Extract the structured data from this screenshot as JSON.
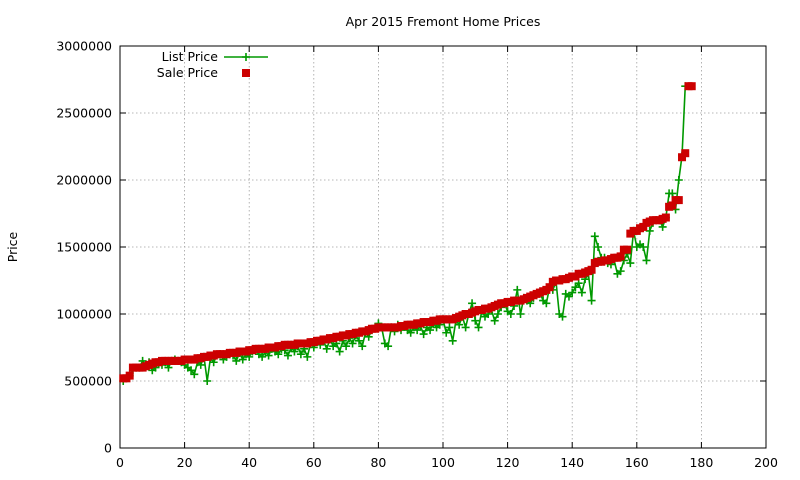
{
  "chart_data": {
    "type": "line",
    "title": "Apr 2015 Fremont Home Prices",
    "xlabel": "",
    "ylabel": "Price",
    "xlim": [
      0,
      200
    ],
    "ylim": [
      0,
      3000000
    ],
    "xticks": [
      "0",
      "20",
      "40",
      "60",
      "80",
      "100",
      "120",
      "140",
      "160",
      "180",
      "200"
    ],
    "yticks": [
      "0",
      "500000",
      "1000000",
      "1500000",
      "2000000",
      "2500000",
      "3000000"
    ],
    "grid": true,
    "legend_position": "top-left",
    "series": [
      {
        "name": "List Price",
        "style": "line+cross",
        "color": "#009900",
        "values": [
          500000,
          520000,
          540000,
          580000,
          600000,
          600000,
          650000,
          620000,
          640000,
          580000,
          600000,
          630000,
          620000,
          640000,
          600000,
          650000,
          660000,
          650000,
          640000,
          620000,
          600000,
          580000,
          550000,
          640000,
          620000,
          680000,
          500000,
          670000,
          640000,
          690000,
          700000,
          660000,
          680000,
          700000,
          690000,
          650000,
          710000,
          660000,
          700000,
          680000,
          720000,
          730000,
          700000,
          680000,
          720000,
          690000,
          740000,
          720000,
          700000,
          740000,
          730000,
          690000,
          750000,
          720000,
          760000,
          700000,
          740000,
          680000,
          780000,
          750000,
          790000,
          770000,
          800000,
          740000,
          810000,
          760000,
          780000,
          720000,
          800000,
          760000,
          820000,
          780000,
          840000,
          800000,
          760000,
          860000,
          830000,
          880000,
          900000,
          930000,
          900000,
          780000,
          760000,
          900000,
          870000,
          920000,
          880000,
          910000,
          880000,
          860000,
          900000,
          880000,
          910000,
          850000,
          900000,
          880000,
          930000,
          900000,
          920000,
          960000,
          860000,
          900000,
          800000,
          950000,
          920000,
          980000,
          900000,
          1000000,
          1080000,
          950000,
          900000,
          1020000,
          980000,
          1000000,
          1030000,
          950000,
          1000000,
          1050000,
          1080000,
          1020000,
          1000000,
          1060000,
          1180000,
          1000000,
          1120000,
          1100000,
          1080000,
          1120000,
          1140000,
          1160000,
          1100000,
          1080000,
          1200000,
          1180000,
          1240000,
          1000000,
          980000,
          1150000,
          1130000,
          1160000,
          1200000,
          1230000,
          1160000,
          1260000,
          1300000,
          1100000,
          1580000,
          1500000,
          1420000,
          1420000,
          1380000,
          1370000,
          1400000,
          1300000,
          1320000,
          1400000,
          1450000,
          1380000,
          1620000,
          1500000,
          1520000,
          1500000,
          1400000,
          1620000,
          1680000,
          1700000,
          1700000,
          1650000,
          1720000,
          1900000,
          1900000,
          1780000,
          2000000,
          2180000,
          2700000
        ]
      },
      {
        "name": "Sale Price",
        "style": "square-markers",
        "color": "#cc0000",
        "values": [
          520000,
          520000,
          540000,
          600000,
          600000,
          600000,
          600000,
          610000,
          620000,
          630000,
          640000,
          640000,
          650000,
          650000,
          650000,
          650000,
          650000,
          650000,
          650000,
          660000,
          660000,
          660000,
          660000,
          670000,
          670000,
          680000,
          680000,
          690000,
          690000,
          700000,
          700000,
          700000,
          700000,
          710000,
          710000,
          710000,
          720000,
          720000,
          720000,
          730000,
          730000,
          740000,
          740000,
          740000,
          740000,
          750000,
          750000,
          750000,
          760000,
          760000,
          770000,
          770000,
          770000,
          770000,
          780000,
          780000,
          780000,
          780000,
          790000,
          790000,
          800000,
          800000,
          810000,
          810000,
          820000,
          820000,
          830000,
          830000,
          840000,
          840000,
          850000,
          850000,
          860000,
          860000,
          870000,
          870000,
          880000,
          890000,
          890000,
          900000,
          900000,
          900000,
          900000,
          900000,
          900000,
          900000,
          910000,
          910000,
          920000,
          920000,
          920000,
          930000,
          930000,
          940000,
          940000,
          940000,
          950000,
          950000,
          960000,
          960000,
          960000,
          960000,
          960000,
          970000,
          980000,
          990000,
          1000000,
          1000000,
          1010000,
          1020000,
          1030000,
          1030000,
          1040000,
          1040000,
          1050000,
          1060000,
          1070000,
          1080000,
          1080000,
          1090000,
          1090000,
          1100000,
          1100000,
          1100000,
          1110000,
          1120000,
          1130000,
          1140000,
          1150000,
          1160000,
          1170000,
          1180000,
          1200000,
          1240000,
          1250000,
          1250000,
          1260000,
          1260000,
          1270000,
          1280000,
          1280000,
          1300000,
          1300000,
          1310000,
          1320000,
          1330000,
          1380000,
          1390000,
          1390000,
          1400000,
          1400000,
          1410000,
          1420000,
          1420000,
          1430000,
          1480000,
          1480000,
          1600000,
          1620000,
          1620000,
          1640000,
          1650000,
          1680000,
          1690000,
          1700000,
          1700000,
          1700000,
          1710000,
          1720000,
          1800000,
          1810000,
          1850000,
          1850000,
          2170000,
          2200000,
          2700000,
          2700000
        ]
      }
    ]
  }
}
